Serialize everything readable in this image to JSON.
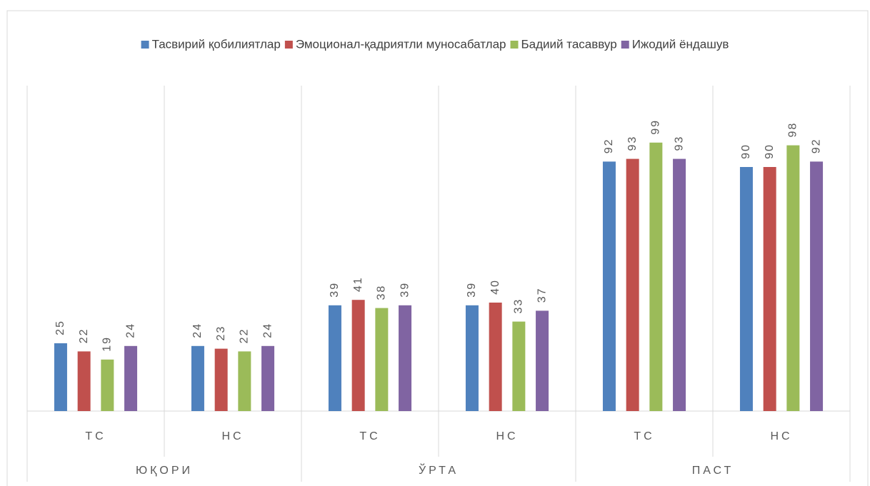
{
  "chart_data": {
    "type": "bar",
    "categories": [
      "ТС",
      "НС",
      "ТС",
      "НС",
      "ТС",
      "НС"
    ],
    "category_groups": [
      "ЮҚОРИ",
      "ЎРТА",
      "ПАСТ"
    ],
    "series": [
      {
        "name": "Тасвирий қобилиятлар",
        "color": "#4f81bd",
        "values": [
          25,
          24,
          39,
          39,
          92,
          90
        ]
      },
      {
        "name": "Эмоционал-қадриятли муносабатлар",
        "color": "#c0504d",
        "values": [
          22,
          23,
          41,
          40,
          93,
          90
        ]
      },
      {
        "name": "Бадиий тасаввур",
        "color": "#9bbb59",
        "values": [
          19,
          22,
          38,
          33,
          99,
          98
        ]
      },
      {
        "name": "Ижодий ёндашув",
        "color": "#8064a2",
        "values": [
          24,
          24,
          39,
          37,
          93,
          92
        ]
      }
    ],
    "ylim": [
      0,
      120
    ],
    "legend": "top"
  }
}
